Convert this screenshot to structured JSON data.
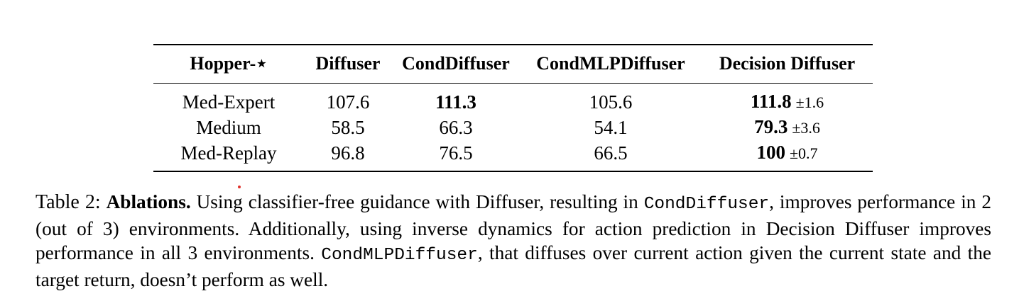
{
  "table": {
    "headers": [
      "Hopper-⋆",
      "Diffuser",
      "CondDiffuser",
      "CondMLPDiffuser",
      "Decision Diffuser"
    ],
    "rows": [
      {
        "env": "Med-Expert",
        "diffuser": "107.6",
        "cond_diffuser": "111.3",
        "cond_mlp_diffuser": "105.6",
        "decision_diffuser": "111.8",
        "decision_diffuser_pm": "±1.6"
      },
      {
        "env": "Medium",
        "diffuser": "58.5",
        "cond_diffuser": "66.3",
        "cond_mlp_diffuser": "54.1",
        "decision_diffuser": "79.3",
        "decision_diffuser_pm": "±3.6"
      },
      {
        "env": "Med-Replay",
        "diffuser": "96.8",
        "cond_diffuser": "76.5",
        "cond_mlp_diffuser": "66.5",
        "decision_diffuser": "100",
        "decision_diffuser_pm": "±0.7"
      }
    ]
  },
  "caption": {
    "label": "Table 2:",
    "title": "Ablations.",
    "text_1": "Using classifier-free guidance with Diffuser, resulting in",
    "code_1": "CondDiffuser",
    "text_2": ", improves performance in 2 (out of 3) environments. Additionally, using inverse dynamics for action prediction in Decision Diffuser improves performance in all 3 environments.",
    "code_2": "CondMLPDiffuser",
    "text_3": ", that diffuses over current action given the current state and the target return, doesn’t perform as well."
  }
}
